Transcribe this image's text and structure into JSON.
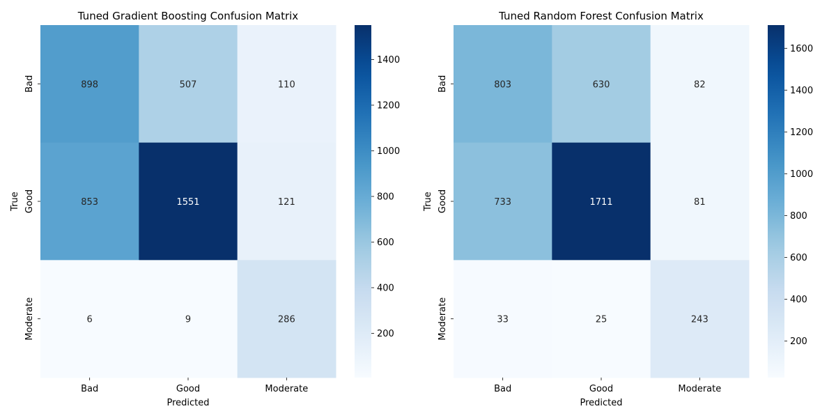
{
  "chart_data": [
    {
      "type": "heatmap",
      "title": "Tuned Gradient Boosting Confusion Matrix",
      "xlabel": "Predicted",
      "ylabel": "True",
      "x_categories": [
        "Bad",
        "Good",
        "Moderate"
      ],
      "y_categories": [
        "Bad",
        "Good",
        "Moderate"
      ],
      "values": [
        [
          898,
          507,
          110
        ],
        [
          853,
          1551,
          121
        ],
        [
          6,
          9,
          286
        ]
      ],
      "colormap": "Blues",
      "color_low": "#f7fbff",
      "color_high": "#08306b",
      "colorbar_ticks": [
        200,
        400,
        600,
        800,
        1000,
        1200,
        1400
      ],
      "colorbar_range": [
        6,
        1551
      ]
    },
    {
      "type": "heatmap",
      "title": "Tuned Random Forest Confusion Matrix",
      "xlabel": "Predicted",
      "ylabel": "True",
      "x_categories": [
        "Bad",
        "Good",
        "Moderate"
      ],
      "y_categories": [
        "Bad",
        "Good",
        "Moderate"
      ],
      "values": [
        [
          803,
          630,
          82
        ],
        [
          733,
          1711,
          81
        ],
        [
          33,
          25,
          243
        ]
      ],
      "colormap": "Blues",
      "color_low": "#f7fbff",
      "color_high": "#08306b",
      "colorbar_ticks": [
        200,
        400,
        600,
        800,
        1000,
        1200,
        1400,
        1600
      ],
      "colorbar_range": [
        25,
        1711
      ]
    }
  ]
}
